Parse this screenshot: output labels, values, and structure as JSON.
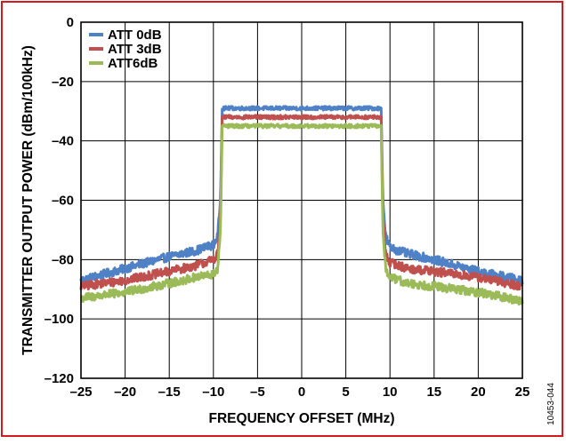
{
  "figure_id": "10453-044",
  "colors": {
    "frame": "#d6191f",
    "series": [
      "#4f81c7",
      "#c0504d",
      "#9bbb59"
    ]
  },
  "chart_data": {
    "type": "line",
    "title": "",
    "xlabel": "FREQUENCY OFFSET (MHz)",
    "ylabel": "TRANSMITTER OUTPUT POWER (dBm/100kHz)",
    "xlim": [
      -25,
      25
    ],
    "ylim": [
      -120,
      0
    ],
    "xticks": [
      -25,
      -20,
      -15,
      -10,
      -5,
      0,
      5,
      10,
      15,
      20,
      25
    ],
    "yticks": [
      0,
      -20,
      -40,
      -60,
      -80,
      -100,
      -120
    ],
    "xtick_labels": [
      "–25",
      "–20",
      "–15",
      "–10",
      "–5",
      "0",
      "5",
      "10",
      "15",
      "20",
      "25"
    ],
    "ytick_labels": [
      "0",
      "–20",
      "–40",
      "–60",
      "–80",
      "–100",
      "–120"
    ],
    "grid": true,
    "legend_position": "top-left",
    "series": [
      {
        "name": "ATT 0dB",
        "color": "#4f81c7",
        "x": [
          -25,
          -20,
          -15,
          -12,
          -10,
          -9.5,
          -9.2,
          -9.0,
          -8.8,
          -5,
          0,
          5,
          8.8,
          9.0,
          9.2,
          9.5,
          10,
          12,
          15,
          20,
          25
        ],
        "y": [
          -87,
          -83,
          -79,
          -77,
          -75,
          -72,
          -60,
          -29,
          -29,
          -29,
          -29,
          -29,
          -29,
          -29,
          -60,
          -72,
          -76,
          -78,
          -80,
          -84,
          -87
        ],
        "noise": 0.8
      },
      {
        "name": "ATT 3dB",
        "color": "#c0504d",
        "x": [
          -25,
          -20,
          -15,
          -12,
          -10,
          -9.5,
          -9.2,
          -9.0,
          -8.8,
          -5,
          0,
          5,
          8.8,
          9.0,
          9.2,
          9.5,
          10,
          12,
          15,
          20,
          25
        ],
        "y": [
          -89,
          -87,
          -84,
          -82,
          -80,
          -78,
          -65,
          -32,
          -32,
          -32,
          -32,
          -32,
          -32,
          -32,
          -65,
          -78,
          -81,
          -83,
          -84,
          -86,
          -89
        ],
        "noise": 0.8
      },
      {
        "name": "ATT6dB",
        "color": "#9bbb59",
        "x": [
          -25,
          -20,
          -15,
          -12,
          -10,
          -9.5,
          -9.2,
          -9.0,
          -8.8,
          -5,
          0,
          5,
          8.8,
          9.0,
          9.2,
          9.5,
          10,
          12,
          15,
          20,
          25
        ],
        "y": [
          -93,
          -91,
          -88,
          -86,
          -85,
          -83,
          -70,
          -35,
          -35,
          -35,
          -35,
          -35,
          -35,
          -35,
          -70,
          -83,
          -86,
          -88,
          -89,
          -91,
          -94
        ],
        "noise": 0.8
      }
    ]
  }
}
